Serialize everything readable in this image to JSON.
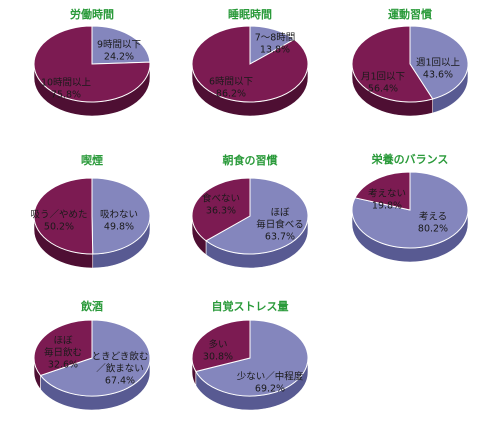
{
  "colors": {
    "maroon": "#7c1b52",
    "maroon_side": "#4e0f33",
    "periwinkle": "#8486bd",
    "periwinkle_side": "#585a92",
    "title": "#2a9a3a"
  },
  "chart_data": [
    {
      "type": "pie",
      "title": "労働時間",
      "slices": [
        {
          "label": [
            "9時間以下",
            "24.2%"
          ],
          "value": 24.2,
          "color": "periwinkle"
        },
        {
          "label": [
            "10時間以上",
            "75.8%"
          ],
          "value": 75.8,
          "color": "maroon"
        }
      ]
    },
    {
      "type": "pie",
      "title": "睡眠時間",
      "slices": [
        {
          "label": [
            "7～8時間",
            "13.8%"
          ],
          "value": 13.8,
          "color": "periwinkle"
        },
        {
          "label": [
            "6時間以下",
            "86.2%"
          ],
          "value": 86.2,
          "color": "maroon"
        }
      ]
    },
    {
      "type": "pie",
      "title": "運動習慣",
      "slices": [
        {
          "label": [
            "週1回以上",
            "43.6%"
          ],
          "value": 43.6,
          "color": "periwinkle"
        },
        {
          "label": [
            "月1回以下",
            "56.4%"
          ],
          "value": 56.4,
          "color": "maroon"
        }
      ]
    },
    {
      "type": "pie",
      "title": "喫煙",
      "slices": [
        {
          "label": [
            "吸わない",
            "49.8%"
          ],
          "value": 49.8,
          "color": "periwinkle"
        },
        {
          "label": [
            "吸う／やめた",
            "50.2%"
          ],
          "value": 50.2,
          "color": "maroon"
        }
      ]
    },
    {
      "type": "pie",
      "title": "朝食の習慣",
      "slices": [
        {
          "label": [
            "ほぼ",
            "毎日食べる",
            "63.7%"
          ],
          "value": 63.7,
          "color": "periwinkle"
        },
        {
          "label": [
            "食べない",
            "36.3%"
          ],
          "value": 36.3,
          "color": "maroon"
        }
      ]
    },
    {
      "type": "pie",
      "title": "栄養のバランス",
      "slices": [
        {
          "label": [
            "考える",
            "80.2%"
          ],
          "value": 80.2,
          "color": "periwinkle"
        },
        {
          "label": [
            "考えない",
            "19.8%"
          ],
          "value": 19.8,
          "color": "maroon"
        }
      ]
    },
    {
      "type": "pie",
      "title": "飲酒",
      "slices": [
        {
          "label": [
            "ときどき飲む",
            "／飲まない",
            "67.4%"
          ],
          "value": 67.4,
          "color": "periwinkle"
        },
        {
          "label": [
            "ほぼ",
            "毎日飲む",
            "32.6%"
          ],
          "value": 32.6,
          "color": "maroon"
        }
      ]
    },
    {
      "type": "pie",
      "title": "自覚ストレス量",
      "slices": [
        {
          "label": [
            "少ない／中程度",
            "69.2%"
          ],
          "value": 69.2,
          "color": "periwinkle"
        },
        {
          "label": [
            "多い",
            "30.8%"
          ],
          "value": 30.8,
          "color": "maroon"
        }
      ]
    }
  ]
}
